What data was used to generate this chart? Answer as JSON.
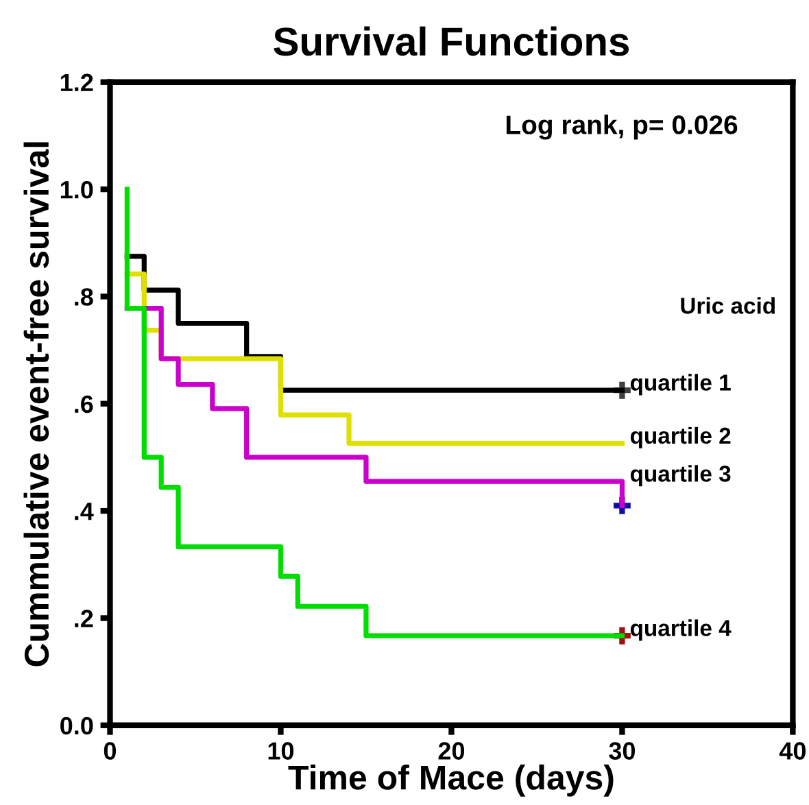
{
  "chart_data": {
    "type": "step",
    "title": "Survival Functions",
    "xlabel": "Time of Mace (days)",
    "ylabel": "Cummulative event-free survival",
    "legend_title": "Uric acid",
    "annotations": [
      "Log rank, p= 0.026"
    ],
    "xlim": [
      0,
      40
    ],
    "ylim": [
      0,
      1.2
    ],
    "xticks": [
      0,
      10,
      20,
      30,
      40
    ],
    "yticks": [
      {
        "value": 0,
        "label": "0.0"
      },
      {
        "value": 0.2,
        "label": ".2"
      },
      {
        "value": 0.4,
        "label": ".4"
      },
      {
        "value": 0.6,
        "label": ".6"
      },
      {
        "value": 0.8,
        "label": ".8"
      },
      {
        "value": 1.0,
        "label": "1.0"
      },
      {
        "value": 1.2,
        "label": "1.2"
      }
    ],
    "grid": false,
    "series": [
      {
        "name": "quartile 1",
        "color": "#000000",
        "x": [
          1,
          2,
          4,
          8,
          10,
          30
        ],
        "values": [
          0.875,
          0.812,
          0.75,
          0.688,
          0.625,
          0.625
        ]
      },
      {
        "name": "quartile 2",
        "color": "#e0e000",
        "x": [
          1,
          2,
          3,
          10,
          14,
          30
        ],
        "values": [
          0.842,
          0.737,
          0.684,
          0.579,
          0.526,
          0.526
        ]
      },
      {
        "name": "quartile 3",
        "color": "#cc00cc",
        "x": [
          1,
          3,
          4,
          6,
          8,
          15,
          30
        ],
        "values": [
          0.778,
          0.684,
          0.636,
          0.591,
          0.5,
          0.455,
          0.41
        ]
      },
      {
        "name": "quartile 4",
        "color": "#00dd00",
        "x": [
          1,
          1,
          2,
          3,
          4,
          10,
          11,
          15,
          30
        ],
        "values": [
          1.0,
          0.778,
          0.5,
          0.444,
          0.333,
          0.278,
          0.222,
          0.167,
          0.167
        ]
      },
      {
        "type": "scatter",
        "marker": "cross",
        "x": [
          30,
          30,
          30
        ],
        "values": [
          0.625,
          0.41,
          0.167
        ],
        "colors": [
          "#404040",
          "#1010a0",
          "#a01010"
        ]
      }
    ]
  }
}
